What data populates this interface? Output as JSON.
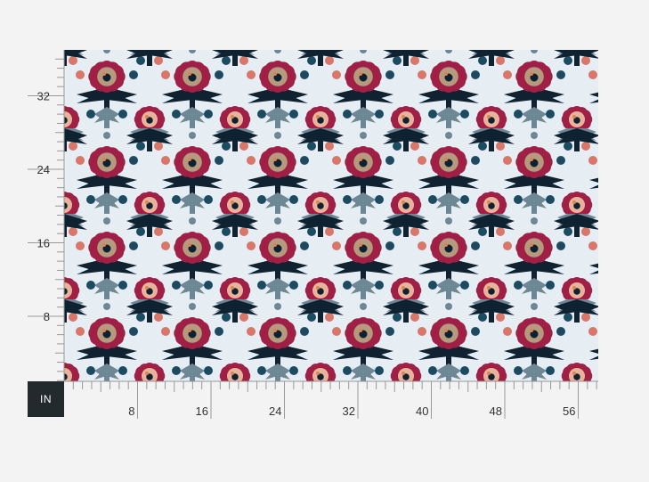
{
  "ruler": {
    "unit_label": "IN",
    "vertical_labels": [
      "8",
      "16",
      "24",
      "32"
    ],
    "horizontal_labels": [
      "8",
      "16",
      "24",
      "32",
      "40",
      "48",
      "56"
    ]
  },
  "pattern": {
    "name": "fabric-print-floral-damask",
    "colors": {
      "background": "#e6eef3",
      "crimson": "#a01f45",
      "navy": "#0f2231",
      "steel_blue": "#6e8797",
      "teal": "#1d4a63",
      "tan": "#b59a80",
      "orange": "#d9874a",
      "salmon": "#d9766a"
    }
  }
}
